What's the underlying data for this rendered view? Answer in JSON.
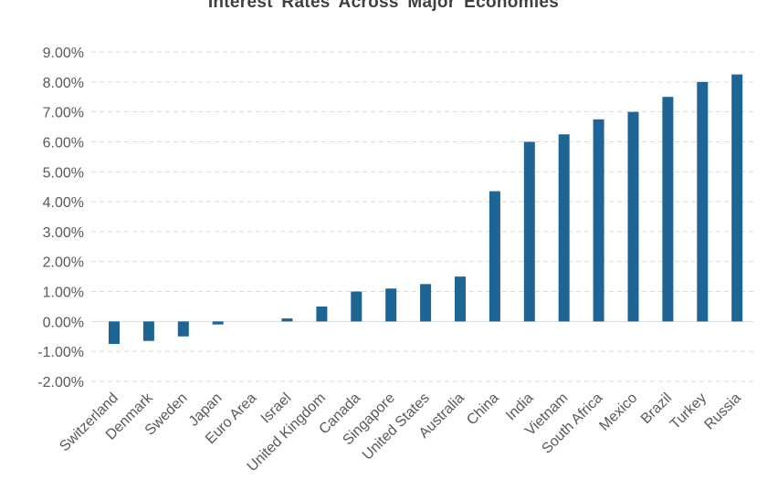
{
  "chart_data": {
    "type": "bar",
    "title": "Interest Rates Across Major Economies",
    "xlabel": "",
    "ylabel": "",
    "categories": [
      "Switzerland",
      "Denmark",
      "Sweden",
      "Japan",
      "Euro Area",
      "Israel",
      "United Kingdom",
      "Canada",
      "Singapore",
      "United States",
      "Australia",
      "China",
      "India",
      "Vietnam",
      "South Africa",
      "Mexico",
      "Brazil",
      "Turkey",
      "Russia"
    ],
    "values": [
      -0.75,
      -0.65,
      -0.5,
      -0.1,
      0.0,
      0.1,
      0.5,
      1.0,
      1.1,
      1.25,
      1.5,
      4.35,
      6.0,
      6.25,
      6.75,
      7.0,
      7.5,
      8.0,
      8.25
    ],
    "ylim": [
      -2,
      9
    ],
    "yticks": [
      "-2.00%",
      "-1.00%",
      "0.00%",
      "1.00%",
      "2.00%",
      "3.00%",
      "4.00%",
      "5.00%",
      "6.00%",
      "7.00%",
      "8.00%",
      "9.00%"
    ],
    "grid": true,
    "bar_color": "#1c6594",
    "gridline_color": "#d9d9d9"
  }
}
